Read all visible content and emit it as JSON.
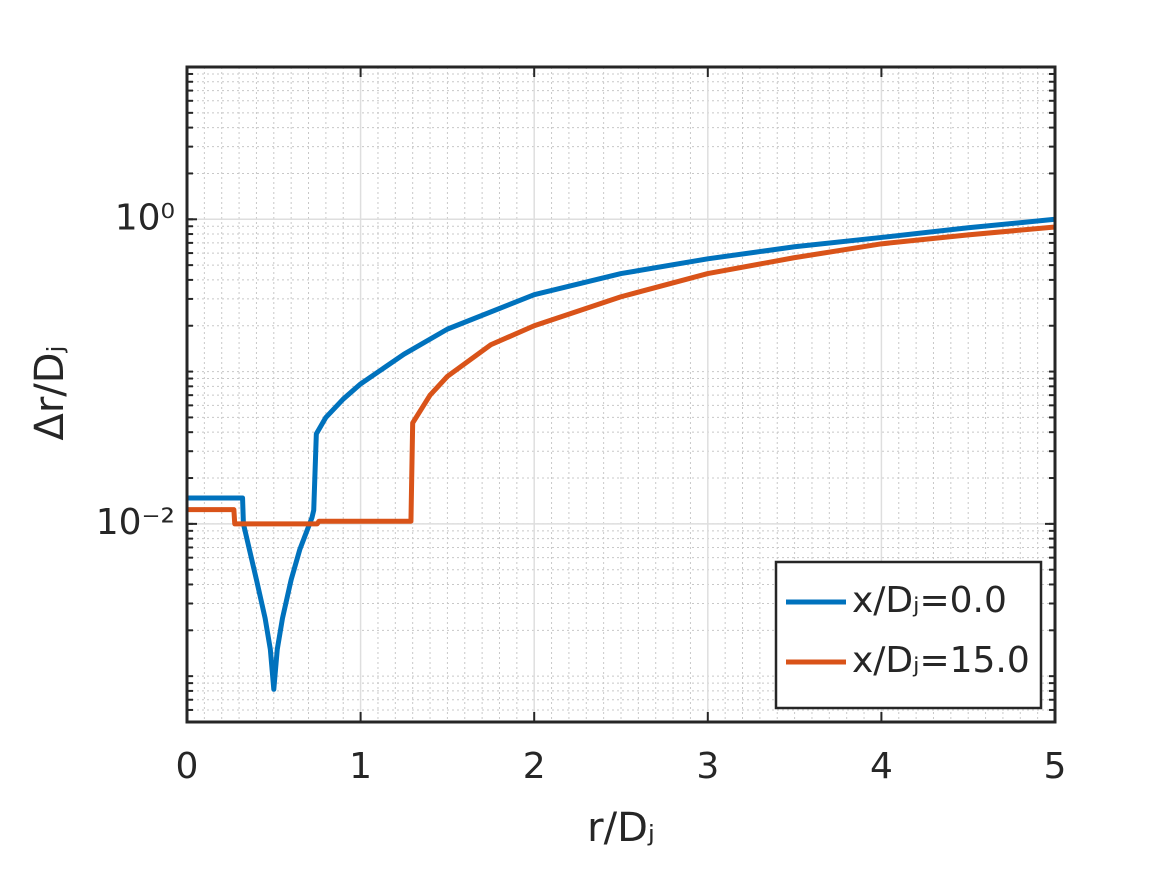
{
  "chart_data": {
    "type": "line",
    "xlabel": "r/Dⱼ",
    "ylabel": "Δr/Dⱼ",
    "xlim": [
      0,
      5
    ],
    "xticks": [
      0,
      1,
      2,
      3,
      4,
      5
    ],
    "ylim": [
      0.0005,
      10
    ],
    "yscale": "log",
    "yticks": [
      {
        "value": 0.01,
        "label": "10⁻²"
      },
      {
        "value": 1,
        "label": "10⁰"
      }
    ],
    "grid": true,
    "minor_grid": true,
    "legend": "southeast",
    "series": [
      {
        "name": "x/Dⱼ=0.0",
        "color": "#0072BD",
        "x": [
          0,
          0.32,
          0.325,
          0.4,
          0.45,
          0.48,
          0.5,
          0.52,
          0.55,
          0.6,
          0.65,
          0.72,
          0.73,
          0.745,
          0.8,
          0.9,
          1.0,
          1.25,
          1.5,
          2,
          2.5,
          3,
          3.5,
          4,
          4.5,
          5
        ],
        "values": [
          0.0148,
          0.0148,
          0.01,
          0.0043,
          0.0024,
          0.0015,
          0.00082,
          0.0015,
          0.0024,
          0.0043,
          0.0068,
          0.011,
          0.0123,
          0.039,
          0.05,
          0.066,
          0.083,
          0.13,
          0.19,
          0.32,
          0.44,
          0.55,
          0.66,
          0.76,
          0.88,
          1.0
        ]
      },
      {
        "name": "x/Dⱼ=15.0",
        "color": "#D95319",
        "x": [
          0,
          0.27,
          0.275,
          0.75,
          0.76,
          1.29,
          1.3,
          1.4,
          1.5,
          1.75,
          2,
          2.5,
          3,
          3.5,
          4,
          4.5,
          5
        ],
        "values": [
          0.0124,
          0.0124,
          0.01,
          0.01,
          0.0104,
          0.0104,
          0.046,
          0.07,
          0.093,
          0.15,
          0.2,
          0.31,
          0.44,
          0.56,
          0.69,
          0.79,
          0.89
        ]
      }
    ]
  }
}
